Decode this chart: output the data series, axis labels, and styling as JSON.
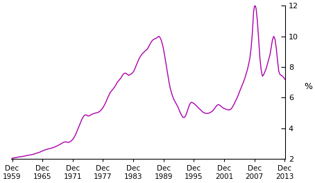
{
  "line_color": "#aa00aa",
  "ylabel": "%",
  "ylim": [
    2,
    12
  ],
  "yticks": [
    2,
    4,
    6,
    8,
    10,
    12
  ],
  "xlim": [
    1959.75,
    2014.0
  ],
  "xtick_labels": [
    "Dec\n1959",
    "Dec\n1965",
    "Dec\n1971",
    "Dec\n1977",
    "Dec\n1983",
    "Dec\n1989",
    "Dec\n1995",
    "Dec\n2001",
    "Dec\n2007",
    "Dec\n2013"
  ],
  "xtick_positions": [
    1959.92,
    1965.92,
    1971.92,
    1977.92,
    1983.92,
    1989.92,
    1995.92,
    2001.92,
    2007.92,
    2013.92
  ],
  "data": [
    [
      1959.92,
      2.05
    ],
    [
      1960.25,
      2.07
    ],
    [
      1960.5,
      2.08
    ],
    [
      1960.75,
      2.1
    ],
    [
      1961.0,
      2.12
    ],
    [
      1961.25,
      2.13
    ],
    [
      1961.5,
      2.14
    ],
    [
      1961.75,
      2.15
    ],
    [
      1962.0,
      2.17
    ],
    [
      1962.25,
      2.18
    ],
    [
      1962.5,
      2.2
    ],
    [
      1962.75,
      2.22
    ],
    [
      1963.0,
      2.23
    ],
    [
      1963.25,
      2.25
    ],
    [
      1963.5,
      2.27
    ],
    [
      1963.75,
      2.28
    ],
    [
      1964.0,
      2.3
    ],
    [
      1964.25,
      2.32
    ],
    [
      1964.5,
      2.35
    ],
    [
      1964.75,
      2.38
    ],
    [
      1965.0,
      2.4
    ],
    [
      1965.25,
      2.43
    ],
    [
      1965.5,
      2.46
    ],
    [
      1965.75,
      2.5
    ],
    [
      1966.0,
      2.54
    ],
    [
      1966.25,
      2.57
    ],
    [
      1966.5,
      2.6
    ],
    [
      1966.75,
      2.63
    ],
    [
      1967.0,
      2.65
    ],
    [
      1967.25,
      2.67
    ],
    [
      1967.5,
      2.69
    ],
    [
      1967.75,
      2.71
    ],
    [
      1968.0,
      2.74
    ],
    [
      1968.25,
      2.77
    ],
    [
      1968.5,
      2.8
    ],
    [
      1968.75,
      2.84
    ],
    [
      1969.0,
      2.88
    ],
    [
      1969.25,
      2.93
    ],
    [
      1969.5,
      2.97
    ],
    [
      1969.75,
      3.02
    ],
    [
      1970.0,
      3.07
    ],
    [
      1970.25,
      3.1
    ],
    [
      1970.5,
      3.12
    ],
    [
      1970.75,
      3.1
    ],
    [
      1971.0,
      3.08
    ],
    [
      1971.25,
      3.1
    ],
    [
      1971.5,
      3.15
    ],
    [
      1971.75,
      3.22
    ],
    [
      1972.0,
      3.3
    ],
    [
      1972.25,
      3.45
    ],
    [
      1972.5,
      3.6
    ],
    [
      1972.75,
      3.8
    ],
    [
      1973.0,
      4.0
    ],
    [
      1973.25,
      4.2
    ],
    [
      1973.5,
      4.4
    ],
    [
      1973.75,
      4.6
    ],
    [
      1974.0,
      4.75
    ],
    [
      1974.25,
      4.85
    ],
    [
      1974.5,
      4.88
    ],
    [
      1974.75,
      4.85
    ],
    [
      1975.0,
      4.8
    ],
    [
      1975.25,
      4.82
    ],
    [
      1975.5,
      4.88
    ],
    [
      1975.75,
      4.92
    ],
    [
      1976.0,
      4.95
    ],
    [
      1976.25,
      4.98
    ],
    [
      1976.5,
      5.0
    ],
    [
      1976.75,
      5.02
    ],
    [
      1977.0,
      5.05
    ],
    [
      1977.25,
      5.1
    ],
    [
      1977.5,
      5.18
    ],
    [
      1977.75,
      5.28
    ],
    [
      1978.0,
      5.4
    ],
    [
      1978.25,
      5.55
    ],
    [
      1978.5,
      5.72
    ],
    [
      1978.75,
      5.92
    ],
    [
      1979.0,
      6.1
    ],
    [
      1979.25,
      6.28
    ],
    [
      1979.5,
      6.4
    ],
    [
      1979.75,
      6.5
    ],
    [
      1980.0,
      6.6
    ],
    [
      1980.25,
      6.72
    ],
    [
      1980.5,
      6.85
    ],
    [
      1980.75,
      7.0
    ],
    [
      1981.0,
      7.1
    ],
    [
      1981.25,
      7.2
    ],
    [
      1981.5,
      7.3
    ],
    [
      1981.75,
      7.45
    ],
    [
      1982.0,
      7.55
    ],
    [
      1982.25,
      7.6
    ],
    [
      1982.5,
      7.58
    ],
    [
      1982.75,
      7.52
    ],
    [
      1983.0,
      7.45
    ],
    [
      1983.25,
      7.5
    ],
    [
      1983.5,
      7.55
    ],
    [
      1983.75,
      7.62
    ],
    [
      1984.0,
      7.72
    ],
    [
      1984.25,
      7.9
    ],
    [
      1984.5,
      8.1
    ],
    [
      1984.75,
      8.3
    ],
    [
      1985.0,
      8.5
    ],
    [
      1985.25,
      8.65
    ],
    [
      1985.5,
      8.78
    ],
    [
      1985.75,
      8.88
    ],
    [
      1986.0,
      8.95
    ],
    [
      1986.25,
      9.05
    ],
    [
      1986.5,
      9.1
    ],
    [
      1986.75,
      9.2
    ],
    [
      1987.0,
      9.35
    ],
    [
      1987.25,
      9.5
    ],
    [
      1987.5,
      9.65
    ],
    [
      1987.75,
      9.75
    ],
    [
      1988.0,
      9.8
    ],
    [
      1988.25,
      9.85
    ],
    [
      1988.5,
      9.88
    ],
    [
      1988.75,
      9.95
    ],
    [
      1989.0,
      10.0
    ],
    [
      1989.25,
      9.9
    ],
    [
      1989.5,
      9.7
    ],
    [
      1989.75,
      9.4
    ],
    [
      1990.0,
      9.0
    ],
    [
      1990.25,
      8.5
    ],
    [
      1990.5,
      8.0
    ],
    [
      1990.75,
      7.5
    ],
    [
      1991.0,
      7.0
    ],
    [
      1991.25,
      6.6
    ],
    [
      1991.5,
      6.3
    ],
    [
      1991.75,
      6.05
    ],
    [
      1992.0,
      5.85
    ],
    [
      1992.25,
      5.7
    ],
    [
      1992.5,
      5.55
    ],
    [
      1992.75,
      5.4
    ],
    [
      1993.0,
      5.2
    ],
    [
      1993.25,
      5.0
    ],
    [
      1993.5,
      4.85
    ],
    [
      1993.75,
      4.72
    ],
    [
      1994.0,
      4.7
    ],
    [
      1994.25,
      4.8
    ],
    [
      1994.5,
      5.0
    ],
    [
      1994.75,
      5.25
    ],
    [
      1995.0,
      5.5
    ],
    [
      1995.25,
      5.65
    ],
    [
      1995.5,
      5.7
    ],
    [
      1995.75,
      5.65
    ],
    [
      1996.0,
      5.6
    ],
    [
      1996.25,
      5.52
    ],
    [
      1996.5,
      5.45
    ],
    [
      1996.75,
      5.35
    ],
    [
      1997.0,
      5.28
    ],
    [
      1997.25,
      5.2
    ],
    [
      1997.5,
      5.12
    ],
    [
      1997.75,
      5.05
    ],
    [
      1998.0,
      5.0
    ],
    [
      1998.25,
      4.98
    ],
    [
      1998.5,
      4.97
    ],
    [
      1998.75,
      4.98
    ],
    [
      1999.0,
      5.0
    ],
    [
      1999.25,
      5.05
    ],
    [
      1999.5,
      5.1
    ],
    [
      1999.75,
      5.18
    ],
    [
      2000.0,
      5.28
    ],
    [
      2000.25,
      5.4
    ],
    [
      2000.5,
      5.5
    ],
    [
      2000.75,
      5.55
    ],
    [
      2001.0,
      5.52
    ],
    [
      2001.25,
      5.45
    ],
    [
      2001.5,
      5.38
    ],
    [
      2001.75,
      5.32
    ],
    [
      2002.0,
      5.28
    ],
    [
      2002.25,
      5.25
    ],
    [
      2002.5,
      5.22
    ],
    [
      2002.75,
      5.2
    ],
    [
      2003.0,
      5.2
    ],
    [
      2003.25,
      5.25
    ],
    [
      2003.5,
      5.35
    ],
    [
      2003.75,
      5.5
    ],
    [
      2004.0,
      5.65
    ],
    [
      2004.25,
      5.82
    ],
    [
      2004.5,
      6.0
    ],
    [
      2004.75,
      6.2
    ],
    [
      2005.0,
      6.42
    ],
    [
      2005.25,
      6.62
    ],
    [
      2005.5,
      6.82
    ],
    [
      2005.75,
      7.02
    ],
    [
      2006.0,
      7.25
    ],
    [
      2006.25,
      7.52
    ],
    [
      2006.5,
      7.8
    ],
    [
      2006.75,
      8.15
    ],
    [
      2007.0,
      8.55
    ],
    [
      2007.25,
      9.2
    ],
    [
      2007.5,
      10.2
    ],
    [
      2007.75,
      11.6
    ],
    [
      2008.0,
      12.1
    ],
    [
      2008.25,
      11.8
    ],
    [
      2008.5,
      11.0
    ],
    [
      2008.75,
      9.8
    ],
    [
      2009.0,
      8.6
    ],
    [
      2009.25,
      7.8
    ],
    [
      2009.5,
      7.4
    ],
    [
      2009.75,
      7.5
    ],
    [
      2010.0,
      7.7
    ],
    [
      2010.25,
      7.9
    ],
    [
      2010.5,
      8.2
    ],
    [
      2010.75,
      8.5
    ],
    [
      2011.0,
      8.8
    ],
    [
      2011.25,
      9.3
    ],
    [
      2011.5,
      9.8
    ],
    [
      2011.75,
      10.0
    ],
    [
      2012.0,
      9.8
    ],
    [
      2012.25,
      9.2
    ],
    [
      2012.5,
      8.4
    ],
    [
      2012.75,
      7.7
    ],
    [
      2013.0,
      7.5
    ],
    [
      2013.25,
      7.45
    ],
    [
      2013.5,
      7.4
    ],
    [
      2013.75,
      7.3
    ],
    [
      2013.92,
      7.2
    ]
  ]
}
